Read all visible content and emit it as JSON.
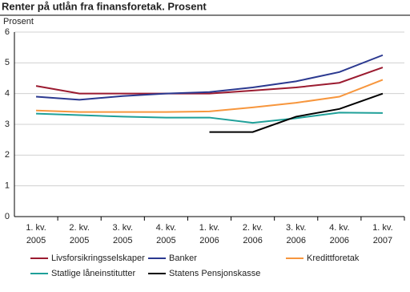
{
  "chart_data": {
    "type": "line",
    "title": "Renter på utlån fra finansforetak. Prosent",
    "y_label": "Prosent",
    "categories": [
      "1. kv. 2005",
      "2. kv. 2005",
      "3. kv. 2005",
      "4. kv. 2005",
      "1. kv. 2006",
      "2. kv. 2006",
      "3. kv. 2006",
      "4. kv. 2006",
      "1. kv. 2007"
    ],
    "series": [
      {
        "name": "Livsforsikringsselskaper",
        "color": "#9b1b30",
        "values": [
          4.25,
          4.0,
          4.0,
          4.0,
          4.0,
          4.1,
          4.2,
          4.35,
          4.85
        ]
      },
      {
        "name": "Banker",
        "color": "#2b3990",
        "values": [
          3.9,
          3.8,
          3.92,
          4.0,
          4.05,
          4.2,
          4.4,
          4.7,
          5.25
        ]
      },
      {
        "name": "Kredittforetak",
        "color": "#f7963d",
        "values": [
          3.45,
          3.4,
          3.4,
          3.4,
          3.42,
          3.55,
          3.7,
          3.9,
          4.45
        ]
      },
      {
        "name": "Statlige låneinstitutter",
        "color": "#1fa099",
        "values": [
          3.35,
          3.3,
          3.25,
          3.22,
          3.22,
          3.05,
          3.2,
          3.38,
          3.37
        ]
      },
      {
        "name": "Statens Pensjonskasse",
        "color": "#000000",
        "values": [
          null,
          null,
          null,
          null,
          2.75,
          2.75,
          3.25,
          3.5,
          4.0
        ]
      }
    ],
    "ylim": [
      0,
      6
    ],
    "yticks": [
      0,
      1,
      2,
      3,
      4,
      5,
      6
    ],
    "grid": true
  }
}
